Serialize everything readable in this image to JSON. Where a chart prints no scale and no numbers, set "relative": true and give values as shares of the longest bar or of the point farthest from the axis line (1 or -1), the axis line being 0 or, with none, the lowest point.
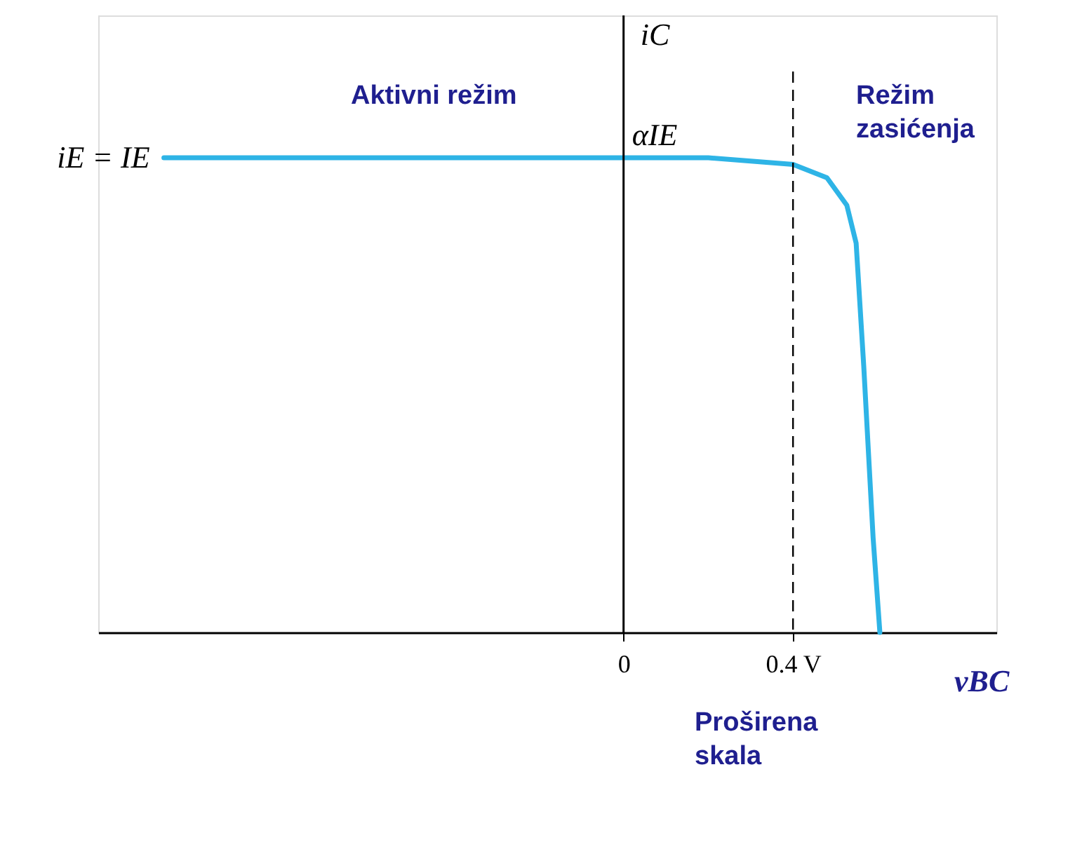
{
  "chart_data": {
    "type": "line",
    "relative": true,
    "xlabel": "vBC",
    "ylabel": "iC",
    "xlim": [
      -1.24,
      0.88
    ],
    "xticks": [
      0,
      {
        "value": 0.4,
        "label": "0.4 V"
      }
    ],
    "series": [
      {
        "color": "#2eb4e6",
        "x": [
          -1.085,
          0.0,
          0.2,
          0.4,
          0.48,
          0.527,
          0.549,
          0.567,
          0.589,
          0.605
        ],
        "values": [
          1,
          1,
          1,
          0.986,
          0.958,
          0.9,
          0.82,
          0.56,
          0.2,
          0
        ]
      }
    ],
    "ref_lines": [
      {
        "axis": "x",
        "value": 0.4,
        "color": "#000000",
        "line_style": "dashed"
      }
    ],
    "annotations": [
      {
        "text": "iE = IE",
        "x": -1.085,
        "y": 1
      },
      {
        "text": "αIE",
        "x": 0,
        "y": 1
      },
      "Aktivni režim",
      "Režim zasićenja",
      "Proširena skala"
    ],
    "grid": false
  }
}
